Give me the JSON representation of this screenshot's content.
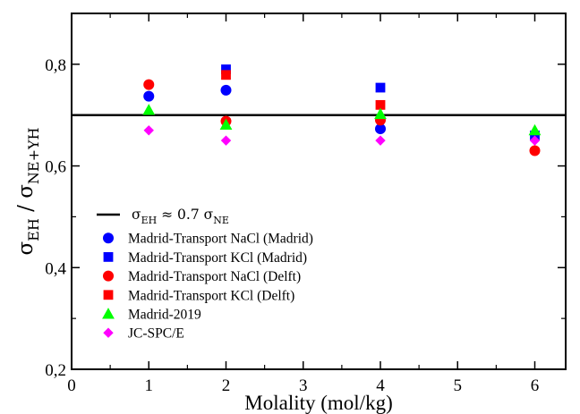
{
  "chart_data": {
    "type": "scatter",
    "xlabel": "Molality (mol/kg)",
    "ylabel": {
      "main": "σ",
      "sub1": "EH",
      "sep": " / ",
      "main2": "σ",
      "sub2": "NE+YH"
    },
    "xlim": [
      0,
      6.4
    ],
    "ylim": [
      0.2,
      0.9
    ],
    "x_ticks": [
      0,
      1,
      2,
      3,
      4,
      5,
      6
    ],
    "x_tick_labels": [
      "0",
      "1",
      "2",
      "3",
      "4",
      "5",
      "6"
    ],
    "y_ticks": [
      0.2,
      0.4,
      0.6,
      0.8
    ],
    "y_tick_labels": [
      "0,2",
      "0,4",
      "0,6",
      "0,8"
    ],
    "grid": false,
    "reference_line": {
      "y": 0.7,
      "color": "#000000",
      "label": {
        "a": "σ",
        "a_sub": "EH",
        "mid": " ≈ 0.7 ",
        "b": "σ",
        "b_sub": "NE"
      }
    },
    "legend_position": "lower-left",
    "series": [
      {
        "name": "Madrid-Transport NaCl (Madrid)",
        "marker": "circle",
        "color": "#0000ff",
        "x": [
          1,
          2,
          4
        ],
        "y": [
          0.737,
          0.749,
          0.673
        ]
      },
      {
        "name": "Madrid-Transport KCl (Madrid)",
        "marker": "square",
        "color": "#0000ff",
        "x": [
          2,
          4,
          6
        ],
        "y": [
          0.79,
          0.754,
          0.66
        ]
      },
      {
        "name": "Madrid-Transport NaCl (Delft)",
        "marker": "circle",
        "color": "#ff0000",
        "x": [
          1,
          2,
          4,
          6
        ],
        "y": [
          0.76,
          0.688,
          0.69,
          0.63
        ]
      },
      {
        "name": "Madrid-Transport KCl (Delft)",
        "marker": "square",
        "color": "#ff0000",
        "x": [
          2,
          4
        ],
        "y": [
          0.779,
          0.72
        ]
      },
      {
        "name": "Madrid-2019",
        "marker": "triangle",
        "color": "#00ff00",
        "x": [
          1,
          2,
          4,
          6
        ],
        "y": [
          0.71,
          0.681,
          0.702,
          0.67
        ]
      },
      {
        "name": "JC-SPC/E",
        "marker": "diamond",
        "color": "#ff00ff",
        "x": [
          1,
          2,
          4,
          6
        ],
        "y": [
          0.67,
          0.65,
          0.65,
          0.65
        ]
      }
    ]
  }
}
